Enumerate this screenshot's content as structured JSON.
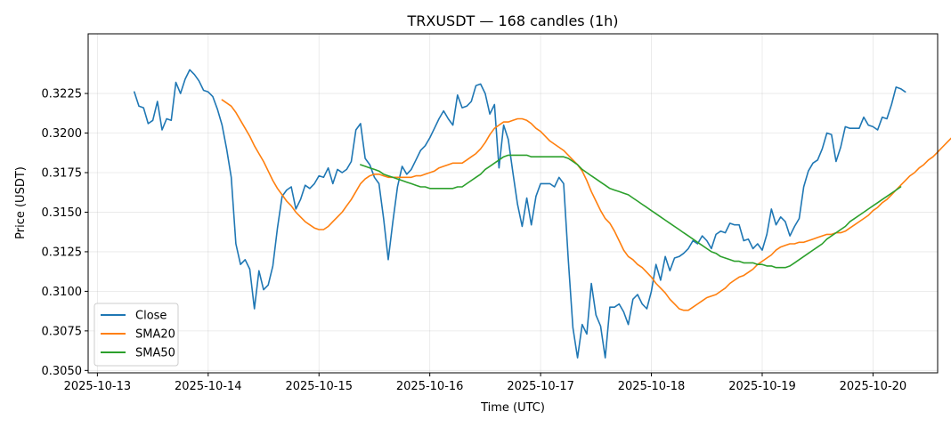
{
  "chart_data": {
    "type": "line",
    "title": "TRXUSDT — 168 candles (1h)",
    "xlabel": "Time (UTC)",
    "ylabel": "Price (USDT)",
    "x_start": "2025-10-13T08:00",
    "interval_hours": 1,
    "xlim": [
      "2025-10-12T22:00",
      "2025-10-20T14:00"
    ],
    "ylim": [
      0.30485,
      0.32627
    ],
    "x_ticks": [
      "2025-10-13",
      "2025-10-14",
      "2025-10-15",
      "2025-10-16",
      "2025-10-17",
      "2025-10-18",
      "2025-10-19",
      "2025-10-20"
    ],
    "y_ticks": [
      "0.3050",
      "0.3075",
      "0.3100",
      "0.3125",
      "0.3150",
      "0.3175",
      "0.3200",
      "0.3225"
    ],
    "grid": true,
    "legend_position": "lower-left",
    "series": [
      {
        "name": "Close",
        "color": "#1f77b4",
        "values": [
          0.3226,
          0.3217,
          0.3216,
          0.3206,
          0.3208,
          0.322,
          0.3202,
          0.3209,
          0.3208,
          0.3232,
          0.3225,
          0.3234,
          0.324,
          0.3237,
          0.3233,
          0.3227,
          0.3226,
          0.3223,
          0.3215,
          0.3205,
          0.319,
          0.3172,
          0.313,
          0.3117,
          0.312,
          0.3114,
          0.3089,
          0.3113,
          0.3101,
          0.3104,
          0.3116,
          0.314,
          0.316,
          0.3164,
          0.3166,
          0.3152,
          0.3158,
          0.3167,
          0.3165,
          0.3168,
          0.3173,
          0.3172,
          0.3178,
          0.3168,
          0.3177,
          0.3175,
          0.3177,
          0.3182,
          0.3202,
          0.3206,
          0.3184,
          0.318,
          0.3172,
          0.3168,
          0.3146,
          0.312,
          0.3144,
          0.3166,
          0.3179,
          0.3174,
          0.3177,
          0.3183,
          0.3189,
          0.3192,
          0.3197,
          0.3203,
          0.3209,
          0.3214,
          0.3209,
          0.3205,
          0.3224,
          0.3216,
          0.3217,
          0.322,
          0.323,
          0.3231,
          0.3225,
          0.3212,
          0.3218,
          0.3178,
          0.3205,
          0.3196,
          0.3175,
          0.3155,
          0.3141,
          0.3159,
          0.3142,
          0.316,
          0.3168,
          0.3168,
          0.3168,
          0.3166,
          0.3172,
          0.3168,
          0.312,
          0.3077,
          0.3058,
          0.3079,
          0.3073,
          0.3105,
          0.3085,
          0.3078,
          0.3058,
          0.309,
          0.309,
          0.3092,
          0.3087,
          0.3079,
          0.3095,
          0.3098,
          0.3092,
          0.3089,
          0.31,
          0.3117,
          0.3107,
          0.3122,
          0.3113,
          0.3121,
          0.3122,
          0.3124,
          0.3127,
          0.3132,
          0.313,
          0.3135,
          0.3132,
          0.3127,
          0.3136,
          0.3138,
          0.3137,
          0.3143,
          0.3142,
          0.3142,
          0.3132,
          0.3133,
          0.3127,
          0.313,
          0.3126,
          0.3136,
          0.3152,
          0.3142,
          0.3147,
          0.3144,
          0.3135,
          0.3141,
          0.3146,
          0.3166,
          0.3176,
          0.3181,
          0.3183,
          0.319,
          0.32,
          0.3199,
          0.3182,
          0.3191,
          0.3204,
          0.3203,
          0.3203,
          0.3203,
          0.321,
          0.3205,
          0.3204,
          0.3202,
          0.321,
          0.3209,
          0.3218,
          0.3229,
          0.3228,
          0.3226
        ]
      },
      {
        "name": "SMA20",
        "color": "#ff7f0e",
        "start_index": 19,
        "values": [
          0.3221,
          0.3219,
          0.3217,
          0.3213,
          0.3208,
          0.3203,
          0.3198,
          0.3192,
          0.3187,
          0.3182,
          0.3176,
          0.317,
          0.3165,
          0.3161,
          0.3157,
          0.3154,
          0.315,
          0.3147,
          0.3144,
          0.3142,
          0.314,
          0.3139,
          0.3139,
          0.3141,
          0.3144,
          0.3147,
          0.315,
          0.3154,
          0.3158,
          0.3163,
          0.3168,
          0.3171,
          0.3173,
          0.3174,
          0.3174,
          0.3173,
          0.3172,
          0.3172,
          0.3172,
          0.3172,
          0.3172,
          0.3172,
          0.3173,
          0.3173,
          0.3174,
          0.3175,
          0.3176,
          0.3178,
          0.3179,
          0.318,
          0.3181,
          0.3181,
          0.3181,
          0.3183,
          0.3185,
          0.3187,
          0.319,
          0.3194,
          0.3199,
          0.3203,
          0.3205,
          0.3207,
          0.3207,
          0.3208,
          0.3209,
          0.3209,
          0.3208,
          0.3206,
          0.3203,
          0.3201,
          0.3198,
          0.3195,
          0.3193,
          0.3191,
          0.3189,
          0.3186,
          0.3183,
          0.318,
          0.3176,
          0.317,
          0.3163,
          0.3157,
          0.3151,
          0.3146,
          0.3143,
          0.3138,
          0.3132,
          0.3126,
          0.3122,
          0.312,
          0.3117,
          0.3115,
          0.3112,
          0.3109,
          0.3105,
          0.3102,
          0.3099,
          0.3095,
          0.3092,
          0.3089,
          0.3088,
          0.3088,
          0.309,
          0.3092,
          0.3094,
          0.3096,
          0.3097,
          0.3098,
          0.31,
          0.3102,
          0.3105,
          0.3107,
          0.3109,
          0.311,
          0.3112,
          0.3114,
          0.3117,
          0.3119,
          0.3121,
          0.3123,
          0.3126,
          0.3128,
          0.3129,
          0.313,
          0.313,
          0.3131,
          0.3131,
          0.3132,
          0.3133,
          0.3134,
          0.3135,
          0.3136,
          0.3136,
          0.3137,
          0.3137,
          0.3138,
          0.314,
          0.3142,
          0.3144,
          0.3146,
          0.3148,
          0.3151,
          0.3153,
          0.3156,
          0.3158,
          0.3161,
          0.3164,
          0.3167,
          0.317,
          0.3173,
          0.3175,
          0.3178,
          0.318,
          0.3183,
          0.3185,
          0.3188,
          0.3191,
          0.3194,
          0.3197,
          0.3199,
          0.3202,
          0.3205
        ]
      },
      {
        "name": "SMA50",
        "color": "#2ca02c",
        "start_index": 49,
        "values": [
          0.318,
          0.3179,
          0.3178,
          0.3177,
          0.3176,
          0.3174,
          0.3173,
          0.3172,
          0.3171,
          0.317,
          0.3169,
          0.3168,
          0.3167,
          0.3166,
          0.3166,
          0.3165,
          0.3165,
          0.3165,
          0.3165,
          0.3165,
          0.3165,
          0.3166,
          0.3166,
          0.3168,
          0.317,
          0.3172,
          0.3174,
          0.3177,
          0.3179,
          0.3181,
          0.3183,
          0.3185,
          0.3186,
          0.3186,
          0.3186,
          0.3186,
          0.3186,
          0.3185,
          0.3185,
          0.3185,
          0.3185,
          0.3185,
          0.3185,
          0.3185,
          0.3185,
          0.3184,
          0.3182,
          0.318,
          0.3177,
          0.3175,
          0.3173,
          0.3171,
          0.3169,
          0.3167,
          0.3165,
          0.3164,
          0.3163,
          0.3162,
          0.3161,
          0.3159,
          0.3157,
          0.3155,
          0.3153,
          0.3151,
          0.3149,
          0.3147,
          0.3145,
          0.3143,
          0.3141,
          0.3139,
          0.3137,
          0.3135,
          0.3133,
          0.3131,
          0.3129,
          0.3127,
          0.3125,
          0.3124,
          0.3122,
          0.3121,
          0.312,
          0.3119,
          0.3119,
          0.3118,
          0.3118,
          0.3118,
          0.3117,
          0.3117,
          0.3116,
          0.3116,
          0.3115,
          0.3115,
          0.3115,
          0.3116,
          0.3118,
          0.312,
          0.3122,
          0.3124,
          0.3126,
          0.3128,
          0.313,
          0.3133,
          0.3135,
          0.3137,
          0.3139,
          0.3141,
          0.3144,
          0.3146,
          0.3148,
          0.315,
          0.3152,
          0.3154,
          0.3156,
          0.3158,
          0.316,
          0.3162,
          0.3164,
          0.3166
        ]
      }
    ]
  }
}
